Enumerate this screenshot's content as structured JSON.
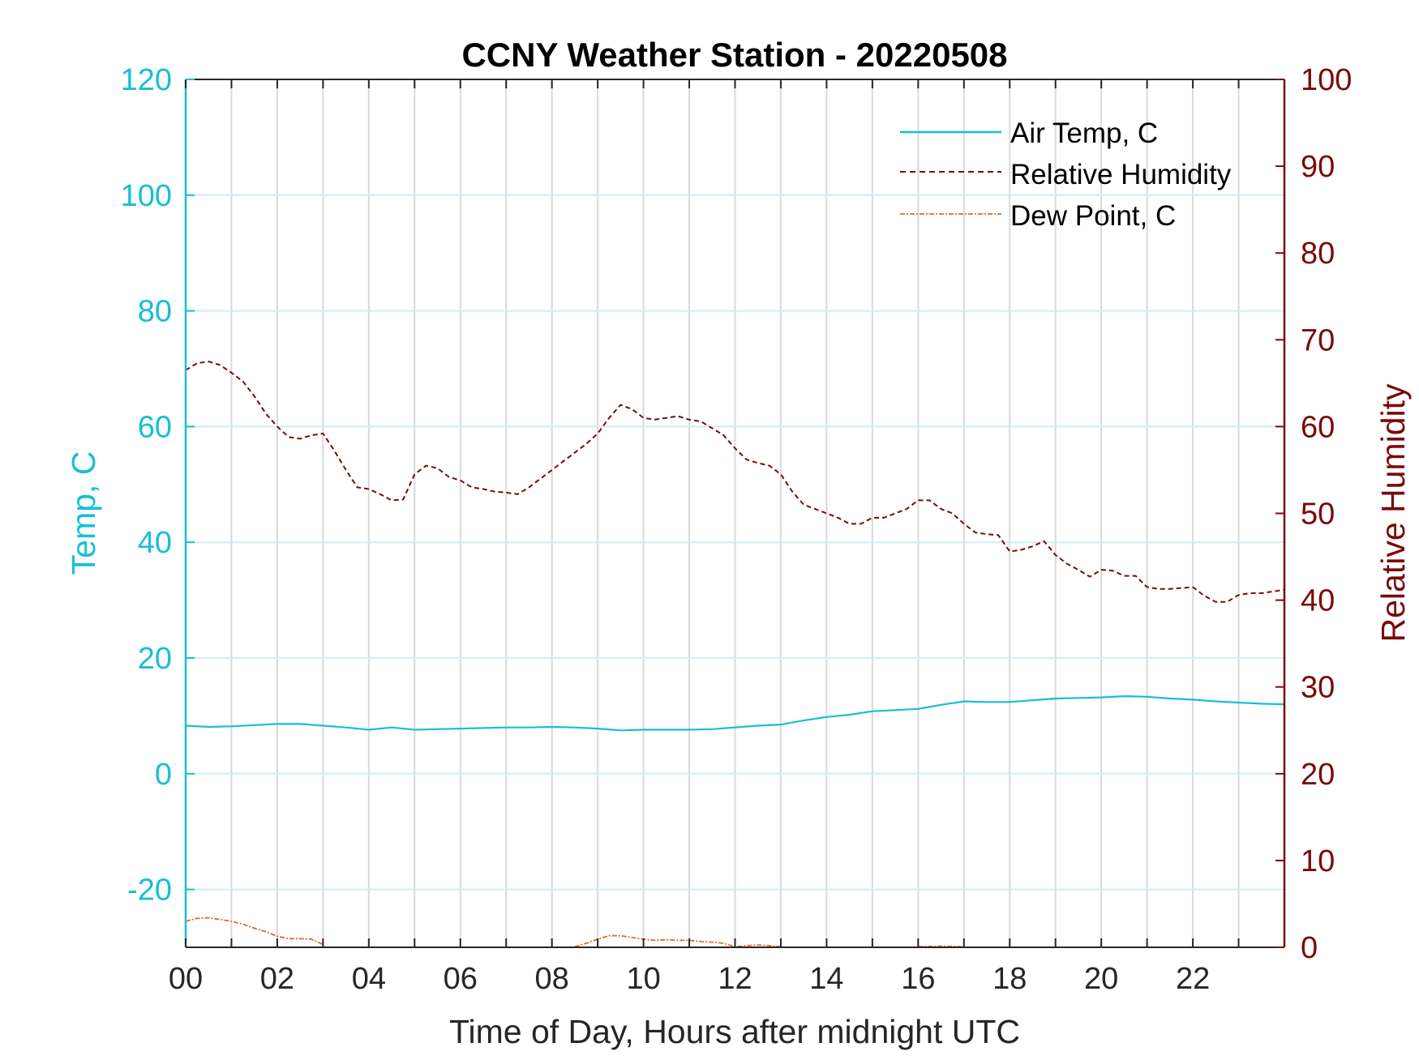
{
  "chart_data": {
    "type": "line",
    "title": "CCNY Weather Station - 20220508",
    "xlabel": "Time of Day, Hours after midnight UTC",
    "ylabel_left": "Temp, C",
    "ylabel_right": "Relative Humidity",
    "xlim": [
      0,
      24
    ],
    "ylim_left": [
      -30,
      120
    ],
    "ylim_right": [
      0,
      100
    ],
    "x_tick_labels": [
      "00",
      "02",
      "04",
      "06",
      "08",
      "10",
      "12",
      "14",
      "16",
      "18",
      "20",
      "22"
    ],
    "y_left_tick_labels": [
      "-20",
      "0",
      "20",
      "40",
      "60",
      "80",
      "100",
      "120"
    ],
    "y_right_tick_labels": [
      "0",
      "10",
      "20",
      "30",
      "40",
      "50",
      "60",
      "70",
      "80",
      "90",
      "100"
    ],
    "grid": true,
    "legend_position": "top-right",
    "colors": {
      "temp": "#17bfd6",
      "rh": "#7a0a0a",
      "dew": "#e06a2a",
      "grid": "#d9d9d9"
    },
    "series": [
      {
        "name": "Air Temp, C",
        "axis": "left",
        "style": "solid",
        "x": [
          0,
          0.5,
          1,
          1.5,
          2,
          2.5,
          3,
          3.5,
          4,
          4.5,
          5,
          5.5,
          6,
          6.5,
          7,
          7.5,
          8,
          8.5,
          9,
          9.5,
          10,
          10.5,
          11,
          11.5,
          12,
          12.5,
          13,
          13.5,
          14,
          14.5,
          15,
          15.5,
          16,
          16.5,
          17,
          17.5,
          18,
          18.5,
          19,
          19.5,
          20,
          20.5,
          21,
          21.5,
          22,
          22.5,
          23,
          23.5,
          24
        ],
        "y": [
          8.3,
          8.1,
          8.2,
          8.4,
          8.6,
          8.6,
          8.3,
          8.0,
          7.6,
          8.0,
          7.6,
          7.7,
          7.8,
          7.9,
          8.0,
          8.0,
          8.1,
          8.0,
          7.8,
          7.5,
          7.6,
          7.6,
          7.6,
          7.7,
          8.0,
          8.3,
          8.5,
          9.2,
          9.8,
          10.2,
          10.8,
          11.0,
          11.2,
          11.9,
          12.5,
          12.4,
          12.4,
          12.7,
          13.0,
          13.1,
          13.2,
          13.4,
          13.3,
          13.0,
          12.8,
          12.5,
          12.3,
          12.1,
          12.0
        ]
      },
      {
        "name": "Relative Humidity",
        "axis": "right",
        "style": "dashed",
        "x": [
          0,
          0.25,
          0.5,
          0.75,
          1,
          1.25,
          1.5,
          1.75,
          2,
          2.25,
          2.5,
          2.75,
          3,
          3.25,
          3.5,
          3.75,
          4,
          4.25,
          4.5,
          4.75,
          5,
          5.25,
          5.5,
          5.75,
          6,
          6.25,
          6.5,
          6.75,
          7,
          7.25,
          7.5,
          7.75,
          8,
          8.25,
          8.5,
          8.75,
          9,
          9.25,
          9.5,
          9.75,
          10,
          10.25,
          10.5,
          10.75,
          11,
          11.25,
          11.5,
          11.75,
          12,
          12.25,
          12.5,
          12.75,
          13,
          13.25,
          13.5,
          13.75,
          14,
          14.25,
          14.5,
          14.75,
          15,
          15.25,
          15.5,
          15.75,
          16,
          16.25,
          16.5,
          16.75,
          17,
          17.25,
          17.5,
          17.75,
          18,
          18.25,
          18.5,
          18.75,
          19,
          19.25,
          19.5,
          19.75,
          20,
          20.25,
          20.5,
          20.75,
          21,
          21.25,
          21.5,
          21.75,
          22,
          22.25,
          22.5,
          22.75,
          23,
          23.25,
          23.5,
          23.75,
          24
        ],
        "y": [
          66.5,
          67.3,
          67.5,
          67.1,
          66.2,
          65.2,
          63.5,
          61.5,
          60,
          58.8,
          58.6,
          59,
          59.2,
          57.2,
          55,
          53,
          52.8,
          52.2,
          51.5,
          51.6,
          54.5,
          55.5,
          55.2,
          54.2,
          53.8,
          53,
          52.8,
          52.5,
          52.4,
          52.2,
          53,
          54,
          55,
          56,
          57,
          58,
          59.2,
          61,
          62.5,
          62,
          61,
          60.8,
          61,
          61.2,
          60.8,
          60.6,
          59.8,
          59,
          57.5,
          56.2,
          55.8,
          55.5,
          54.5,
          52.5,
          51,
          50.5,
          50,
          49.5,
          48.8,
          48.8,
          49.5,
          49.5,
          50,
          50.5,
          51.5,
          51.5,
          50.5,
          50,
          48.8,
          47.8,
          47.6,
          47.5,
          45.6,
          45.8,
          46.2,
          46.8,
          45.2,
          44.2,
          43.5,
          42.7,
          43.5,
          43.4,
          42.8,
          42.8,
          41.5,
          41.3,
          41.3,
          41.4,
          41.5,
          40.5,
          39.8,
          39.8,
          40.6,
          40.8,
          40.8,
          41,
          41.2
        ]
      },
      {
        "name": "Dew Point, C",
        "axis": "left",
        "style": "dash-dot",
        "segments": [
          {
            "x": [
              0,
              0.25,
              0.5,
              0.75,
              1,
              1.25,
              1.5,
              1.75,
              2,
              2.25,
              2.5,
              2.75,
              3
            ],
            "y": [
              -25.5,
              -25.0,
              -24.9,
              -25.2,
              -25.5,
              -26.0,
              -26.7,
              -27.3,
              -28.1,
              -28.5,
              -28.5,
              -28.6,
              -29.5
            ]
          },
          {
            "x": [
              8.5,
              8.75,
              9,
              9.25,
              9.5,
              9.75,
              10,
              10.25,
              10.5,
              10.75,
              11,
              11.25,
              11.5,
              11.75,
              12,
              12.25,
              12.5,
              12.75,
              13
            ],
            "y": [
              -29.9,
              -29.3,
              -28.6,
              -28.0,
              -28.0,
              -28.3,
              -28.6,
              -28.8,
              -28.7,
              -28.8,
              -28.8,
              -29.0,
              -29.1,
              -29.3,
              -29.9,
              -29.7,
              -29.6,
              -29.7,
              -29.9
            ]
          },
          {
            "x": [
              16,
              16.5,
              17
            ],
            "y": [
              -29.9,
              -29.8,
              -29.9
            ]
          }
        ]
      }
    ]
  }
}
